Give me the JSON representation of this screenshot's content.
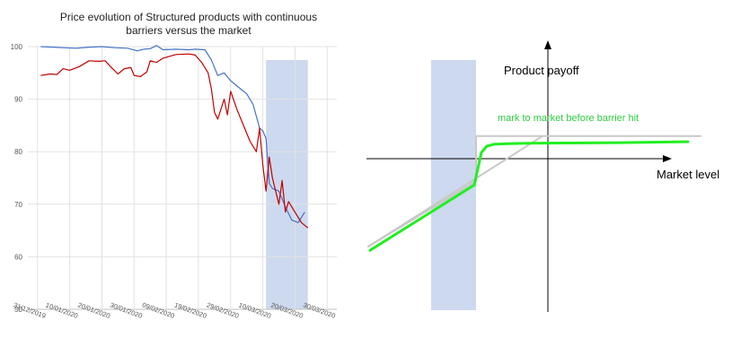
{
  "chart_data": [
    {
      "type": "line",
      "title_line1": "Price evolution of Structured products with continuous",
      "title_line2": "barriers versus the market",
      "ylim": [
        50,
        100
      ],
      "yticks": [
        50,
        60,
        70,
        80,
        90,
        100
      ],
      "xticks": [
        "31/12/2019",
        "10/01/2020",
        "20/01/2020",
        "30/01/2020",
        "09/02/2020",
        "19/02/2020",
        "29/02/2020",
        "10/03/2020",
        "20/03/2020",
        "30/03/2020"
      ],
      "grid": true,
      "highlight_band": {
        "from": "2020-03-11",
        "to": "2020-03-24",
        "color": "#cdd9ee"
      },
      "series": [
        {
          "color": "#4472c4",
          "points": [
            [
              "2020-01-01",
              100
            ],
            [
              "2020-01-05",
              99.9
            ],
            [
              "2020-01-08",
              99.8
            ],
            [
              "2020-01-12",
              99.7
            ],
            [
              "2020-01-16",
              99.9
            ],
            [
              "2020-01-20",
              100
            ],
            [
              "2020-01-24",
              99.8
            ],
            [
              "2020-01-28",
              99.7
            ],
            [
              "2020-01-31",
              99.2
            ],
            [
              "2020-02-02",
              99.5
            ],
            [
              "2020-02-04",
              99.6
            ],
            [
              "2020-02-06",
              100.2
            ],
            [
              "2020-02-08",
              99.4
            ],
            [
              "2020-02-12",
              99.5
            ],
            [
              "2020-02-16",
              99.4
            ],
            [
              "2020-02-18",
              99.5
            ],
            [
              "2020-02-21",
              99.4
            ],
            [
              "2020-02-23",
              97.5
            ],
            [
              "2020-02-25",
              94.5
            ],
            [
              "2020-02-27",
              95
            ],
            [
              "2020-02-29",
              93.5
            ],
            [
              "2020-03-03",
              92
            ],
            [
              "2020-03-05",
              91
            ],
            [
              "2020-03-07",
              89
            ],
            [
              "2020-03-09",
              84.5
            ],
            [
              "2020-03-10",
              84
            ],
            [
              "2020-03-11",
              82.5
            ],
            [
              "2020-03-12",
              74
            ],
            [
              "2020-03-13",
              73
            ],
            [
              "2020-03-15",
              72.5
            ],
            [
              "2020-03-17",
              69.5
            ],
            [
              "2020-03-19",
              67
            ],
            [
              "2020-03-21",
              66.5
            ],
            [
              "2020-03-23",
              68.5
            ]
          ]
        },
        {
          "color": "#c00000",
          "points": [
            [
              "2020-01-01",
              94.5
            ],
            [
              "2020-01-04",
              94.8
            ],
            [
              "2020-01-06",
              94.7
            ],
            [
              "2020-01-08",
              95.8
            ],
            [
              "2020-01-10",
              95.5
            ],
            [
              "2020-01-13",
              96.2
            ],
            [
              "2020-01-16",
              97.3
            ],
            [
              "2020-01-19",
              97.2
            ],
            [
              "2020-01-21",
              97.3
            ],
            [
              "2020-01-23",
              96
            ],
            [
              "2020-01-25",
              94.8
            ],
            [
              "2020-01-27",
              95.8
            ],
            [
              "2020-01-29",
              96
            ],
            [
              "2020-01-30",
              94.5
            ],
            [
              "2020-02-01",
              94.3
            ],
            [
              "2020-02-03",
              95.2
            ],
            [
              "2020-02-04",
              97.3
            ],
            [
              "2020-02-06",
              97
            ],
            [
              "2020-02-08",
              97.8
            ],
            [
              "2020-02-12",
              98.5
            ],
            [
              "2020-02-16",
              98.6
            ],
            [
              "2020-02-18",
              98.4
            ],
            [
              "2020-02-20",
              97
            ],
            [
              "2020-02-22",
              95
            ],
            [
              "2020-02-23",
              92
            ],
            [
              "2020-02-24",
              87.5
            ],
            [
              "2020-02-25",
              86.2
            ],
            [
              "2020-02-27",
              90
            ],
            [
              "2020-02-28",
              87
            ],
            [
              "2020-02-29",
              91.5
            ],
            [
              "2020-03-02",
              88
            ],
            [
              "2020-03-04",
              85
            ],
            [
              "2020-03-06",
              82
            ],
            [
              "2020-03-08",
              80
            ],
            [
              "2020-03-09",
              84.5
            ],
            [
              "2020-03-10",
              77.5
            ],
            [
              "2020-03-11",
              72.5
            ],
            [
              "2020-03-12",
              79
            ],
            [
              "2020-03-13",
              75
            ],
            [
              "2020-03-15",
              70
            ],
            [
              "2020-03-16",
              74.5
            ],
            [
              "2020-03-17",
              68.5
            ],
            [
              "2020-03-18",
              70.5
            ],
            [
              "2020-03-20",
              68.5
            ],
            [
              "2020-03-22",
              66.5
            ],
            [
              "2020-03-24",
              65.5
            ]
          ]
        }
      ]
    },
    {
      "type": "line",
      "ylabel": "Product payoff",
      "xlabel": "Market level",
      "annotation": "mark to market before barrier hit",
      "annotation_color": "#2ecc40",
      "xlim": [
        -100,
        100
      ],
      "ylim": [
        -100,
        100
      ],
      "highlight_band": {
        "from": -65,
        "to": -40,
        "color": "#cdd9ee"
      },
      "series": [
        {
          "kind": "payoff_at_maturity",
          "color": "#c8c8c8",
          "points": [
            [
              -100,
              -70
            ],
            [
              -40,
              -18
            ],
            [
              -40,
              18
            ],
            [
              85,
              18
            ]
          ]
        },
        {
          "kind": "payoff_linear_reference",
          "color": "#c8c8c8",
          "points": [
            [
              -100,
              -70
            ],
            [
              -3,
              18
            ]
          ]
        },
        {
          "kind": "mark_to_market",
          "color": "#22ee22",
          "points": [
            [
              -99,
              -73
            ],
            [
              -41,
              -21
            ],
            [
              -39,
              -8
            ],
            [
              -37,
              5
            ],
            [
              -34,
              10
            ],
            [
              -30,
              11.5
            ],
            [
              -22,
              12
            ],
            [
              -10,
              12.3
            ],
            [
              10,
              12.5
            ],
            [
              40,
              12.8
            ],
            [
              78,
              13.5
            ]
          ]
        }
      ]
    }
  ]
}
